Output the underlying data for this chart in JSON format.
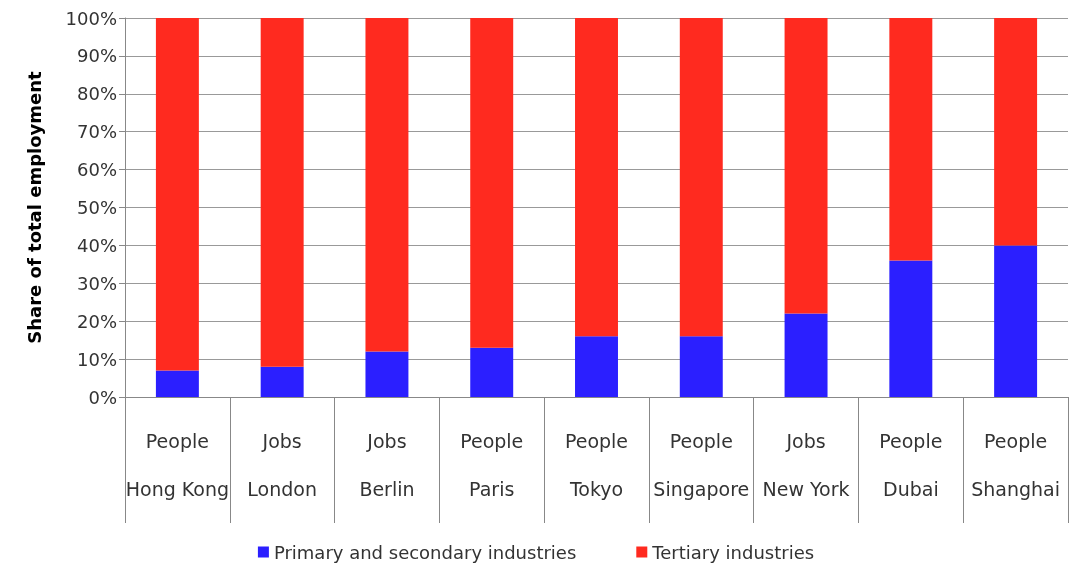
{
  "chart_data": {
    "type": "bar",
    "stacked": true,
    "ylabel": "Share of total employment",
    "categories": [
      "People\nHong Kong",
      "Jobs\nLondon",
      "Jobs\nBerlin",
      "People\nParis",
      "People\nTokyo",
      "People\nSingapore",
      "Jobs\nNew York",
      "People\nDubai",
      "People\nShanghai"
    ],
    "series": [
      {
        "name": "Primary and secondary industries",
        "color": "#2b1fff",
        "values": [
          7,
          8,
          12,
          13,
          16,
          16,
          22,
          36,
          40
        ]
      },
      {
        "name": "Tertiary industries",
        "color": "#ff2a1f",
        "values": [
          93,
          92,
          88,
          87,
          84,
          84,
          78,
          64,
          60
        ]
      }
    ],
    "ylim": [
      0,
      100
    ],
    "yticks": [
      {
        "value": 0,
        "label": "0%"
      },
      {
        "value": 10,
        "label": "10%"
      },
      {
        "value": 20,
        "label": "20%"
      },
      {
        "value": 30,
        "label": "30%"
      },
      {
        "value": 40,
        "label": "40%"
      },
      {
        "value": 50,
        "label": "50%"
      },
      {
        "value": 60,
        "label": "60%"
      },
      {
        "value": 70,
        "label": "70%"
      },
      {
        "value": 80,
        "label": "80%"
      },
      {
        "value": 90,
        "label": "90%"
      },
      {
        "value": 100,
        "label": "100%"
      }
    ],
    "grid": "y",
    "legend": "bottom"
  }
}
